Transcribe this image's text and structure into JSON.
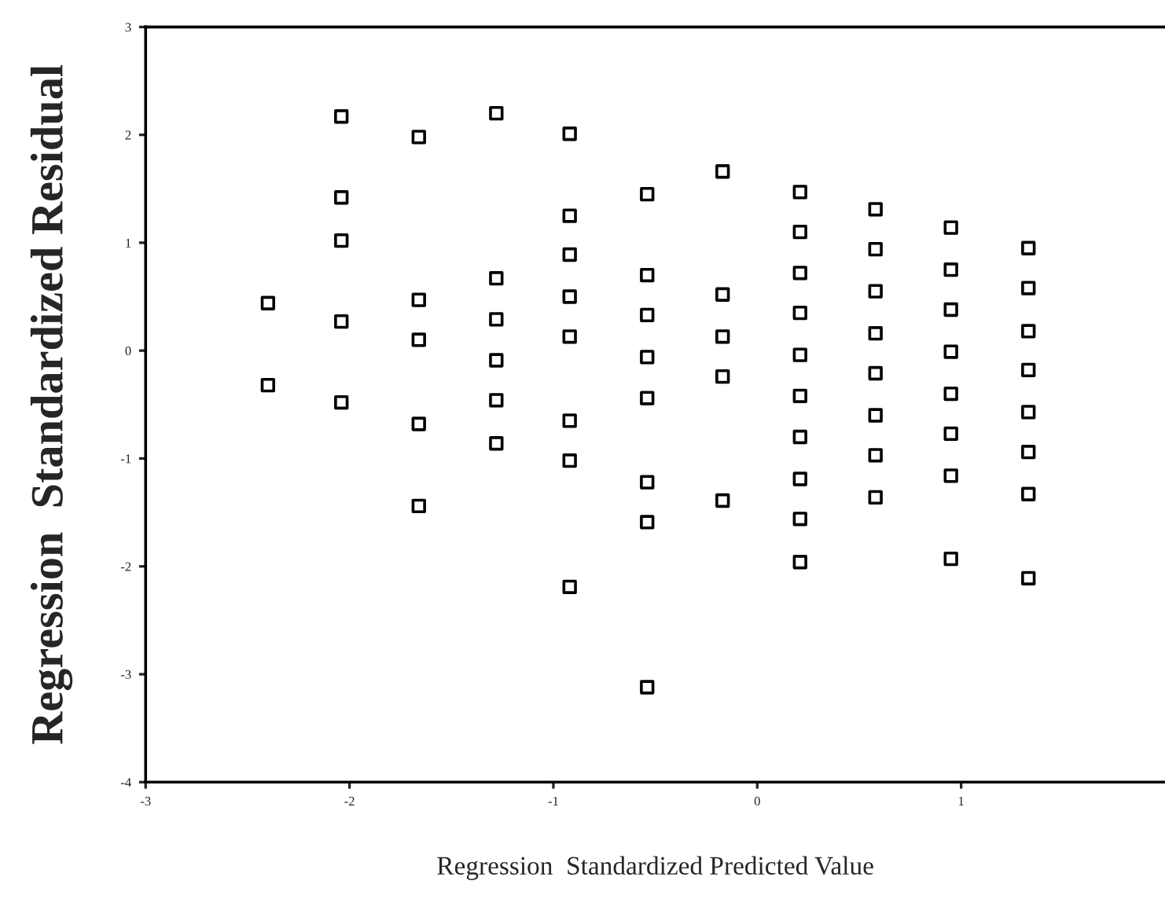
{
  "chart_data": {
    "type": "scatter",
    "xlabel": "Regression  Standardized Predicted Value",
    "ylabel": "Regression  Standardized Residual",
    "series": [
      {
        "color": "#000000",
        "x": [
          -2.4,
          -2.4,
          -2.04,
          -2.04,
          -2.04,
          -2.04,
          -2.04,
          -1.66,
          -1.66,
          -1.66,
          -1.66,
          -1.66,
          -1.28,
          -1.28,
          -1.28,
          -1.28,
          -1.28,
          -1.28,
          -0.92,
          -0.92,
          -0.92,
          -0.92,
          -0.92,
          -0.92,
          -0.92,
          -0.92,
          -0.54,
          -0.54,
          -0.54,
          -0.54,
          -0.54,
          -0.54,
          -0.54,
          -0.54,
          -0.17,
          -0.17,
          -0.17,
          -0.17,
          -0.17,
          0.21,
          0.21,
          0.21,
          0.21,
          0.21,
          0.21,
          0.21,
          0.21,
          0.21,
          0.21,
          0.58,
          0.58,
          0.58,
          0.58,
          0.58,
          0.58,
          0.58,
          0.58,
          0.95,
          0.95,
          0.95,
          0.95,
          0.95,
          0.95,
          0.95,
          0.95,
          1.33,
          1.33,
          1.33,
          1.33,
          1.33,
          1.33,
          1.33,
          1.33
        ],
        "values": [
          0.44,
          -0.32,
          2.17,
          1.42,
          1.02,
          0.27,
          -0.48,
          1.98,
          0.47,
          0.1,
          -0.68,
          -1.44,
          2.2,
          0.67,
          0.29,
          -0.09,
          -0.46,
          -0.86,
          2.01,
          1.25,
          0.89,
          0.5,
          0.13,
          -0.65,
          -1.02,
          -2.19,
          1.45,
          0.7,
          0.33,
          -0.06,
          -0.44,
          -1.22,
          -1.59,
          -3.12,
          1.66,
          0.52,
          0.13,
          -0.24,
          -1.39,
          1.47,
          1.1,
          0.72,
          0.35,
          -0.04,
          -0.42,
          -0.8,
          -1.19,
          -1.56,
          -1.96,
          1.31,
          0.94,
          0.55,
          0.16,
          -0.21,
          -0.6,
          -0.97,
          -1.36,
          1.14,
          0.75,
          0.38,
          -0.01,
          -0.4,
          -0.77,
          -1.16,
          -1.93,
          0.95,
          0.58,
          0.18,
          -0.18,
          -0.57,
          -0.94,
          -1.33,
          -2.11
        ]
      }
    ],
    "marker": "square",
    "xlim": [
      -3,
      2
    ],
    "xticks": [
      -3,
      -2,
      -1,
      0,
      1
    ],
    "ylim": [
      -4,
      3
    ],
    "yticks": [
      -4,
      -3,
      -2,
      -1,
      0,
      1,
      2,
      3
    ],
    "grid": false,
    "legend": false
  }
}
